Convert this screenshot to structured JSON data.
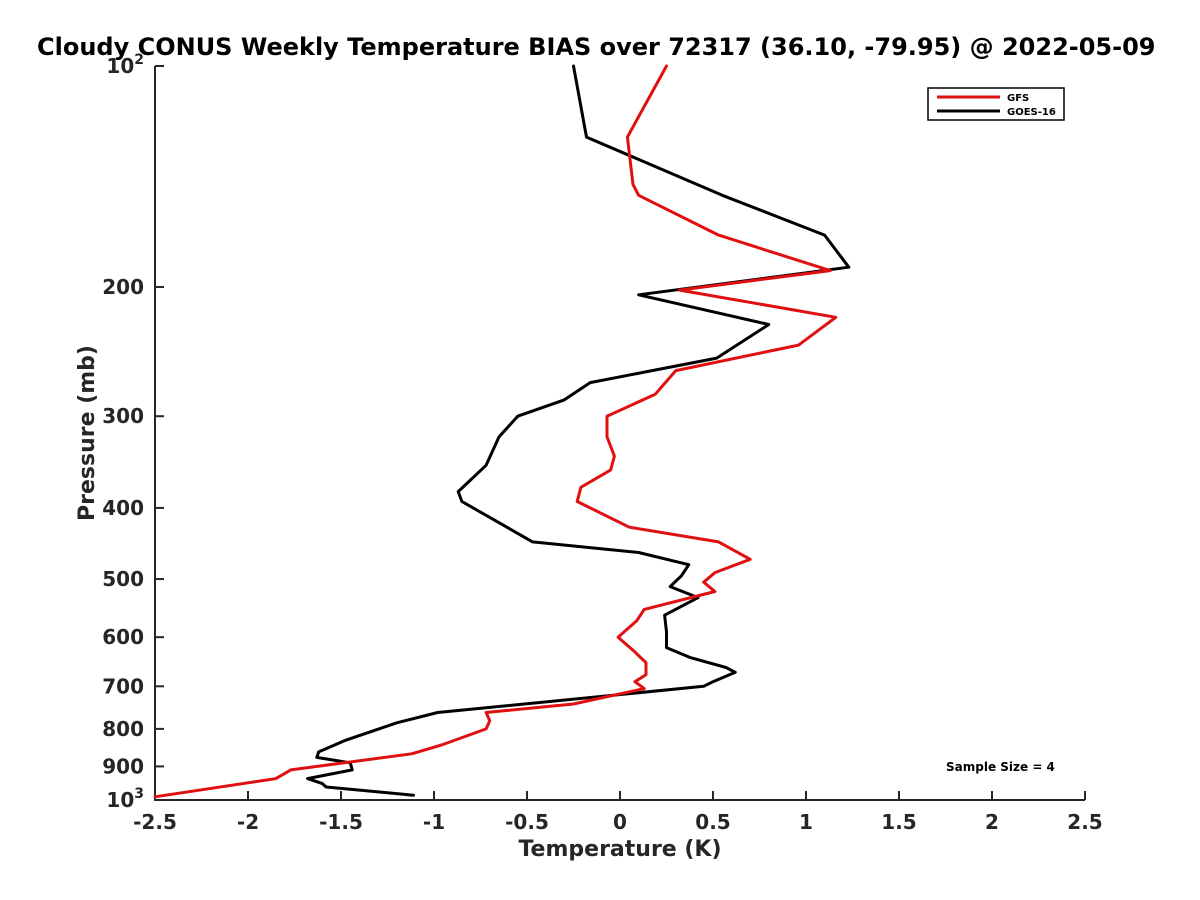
{
  "chart_data": {
    "type": "line",
    "title": "Cloudy CONUS Weekly Temperature BIAS over 72317 (36.10, -79.95) @ 2022-05-09",
    "xlabel": "Temperature (K)",
    "ylabel": "Pressure (mb)",
    "xlim": [
      -2.5,
      2.5
    ],
    "ylim": [
      100,
      1000
    ],
    "y_scale": "log",
    "y_reversed": true,
    "grid": false,
    "legend_position": "top-right",
    "x_ticks": [
      -2.5,
      -2,
      -1.5,
      -1,
      -0.5,
      0,
      0.5,
      1,
      1.5,
      2,
      2.5
    ],
    "x_tick_labels": [
      "-2.5",
      "-2",
      "-1.5",
      "-1",
      "-0.5",
      "0",
      "0.5",
      "1",
      "1.5",
      "2",
      "2.5"
    ],
    "y_ticks": [
      200,
      300,
      400,
      500,
      600,
      700,
      800,
      900
    ],
    "y_tick_labels": [
      "200",
      "300",
      "400",
      "500",
      "600",
      "700",
      "800",
      "900"
    ],
    "y_power_ticks": [
      {
        "value": 100,
        "base": "10",
        "exp": "2"
      },
      {
        "value": 1000,
        "base": "10",
        "exp": "3"
      }
    ],
    "annotation": "Sample Size = 4",
    "series": [
      {
        "name": "GFS",
        "color": "#e01010",
        "x": [
          0.25,
          0.04,
          0.07,
          0.1,
          0.53,
          1.13,
          0.32,
          1.16,
          0.96,
          0.3,
          0.19,
          -0.07,
          -0.07,
          -0.03,
          -0.05,
          -0.21,
          -0.23,
          0.05,
          0.53,
          0.7,
          0.51,
          0.45,
          0.51,
          0.13,
          0.09,
          -0.01,
          0.07,
          0.14,
          0.14,
          0.08,
          0.13,
          -0.25,
          -0.72,
          -0.7,
          -0.72,
          -0.95,
          -1.12,
          -1.77,
          -1.85,
          -2.5
        ],
        "y": [
          100,
          125,
          145,
          150,
          170,
          190,
          202,
          220,
          240,
          260,
          280,
          300,
          320,
          340,
          355,
          375,
          392,
          425,
          445,
          470,
          490,
          505,
          520,
          550,
          570,
          600,
          625,
          650,
          675,
          690,
          705,
          740,
          760,
          780,
          800,
          840,
          865,
          910,
          935,
          990
        ]
      },
      {
        "name": "GOES-16",
        "color": "#000000",
        "x": [
          -0.25,
          -0.18,
          0.55,
          1.1,
          1.23,
          0.1,
          0.8,
          0.52,
          -0.16,
          -0.3,
          -0.55,
          -0.65,
          -0.72,
          -0.87,
          -0.85,
          -0.47,
          0.1,
          0.37,
          0.33,
          0.27,
          0.42,
          0.24,
          0.25,
          0.25,
          0.38,
          0.57,
          0.62,
          0.5,
          0.45,
          -0.98,
          -1.2,
          -1.48,
          -1.62,
          -1.63,
          -1.45,
          -1.44,
          -1.68,
          -1.6,
          -1.58,
          -1.11
        ],
        "y": [
          100,
          125,
          150,
          170,
          188,
          205,
          225,
          250,
          270,
          285,
          300,
          320,
          350,
          380,
          392,
          445,
          460,
          478,
          495,
          512,
          530,
          560,
          590,
          620,
          640,
          660,
          670,
          690,
          700,
          760,
          785,
          830,
          860,
          875,
          890,
          910,
          935,
          950,
          960,
          985
        ]
      }
    ]
  }
}
